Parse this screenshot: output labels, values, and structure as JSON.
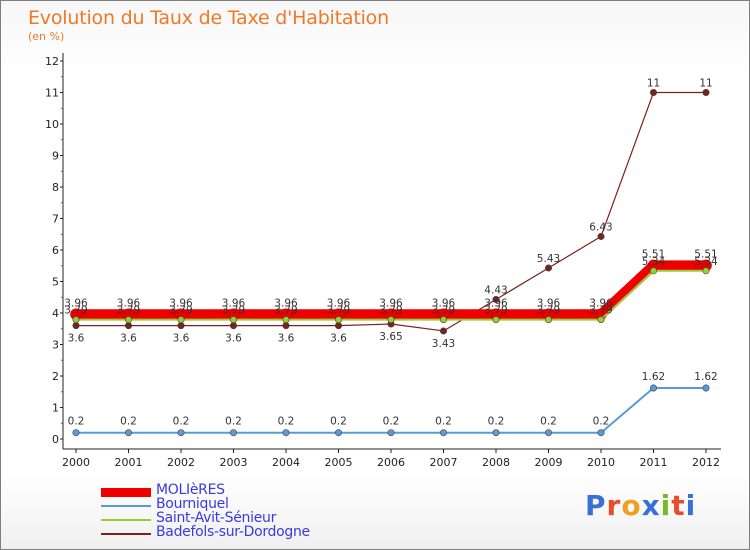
{
  "title": "Evolution du Taux de Taxe d'Habitation",
  "subtitle": "(en %)",
  "brand": {
    "letters": [
      "P",
      "r",
      "o",
      "x",
      "i",
      "t",
      "i"
    ],
    "colors": [
      "#3a6fd8",
      "#e84c2a",
      "#f0a020",
      "#3a6fd8",
      "#7ab82a",
      "#e84c2a",
      "#3a6fd8"
    ]
  },
  "chart_data": {
    "type": "line",
    "title": "Evolution du Taux de Taxe d'Habitation",
    "ylabel": "(en %)",
    "xlabel": "",
    "ylim": [
      0,
      12
    ],
    "yticks": [
      0,
      1,
      2,
      3,
      4,
      5,
      6,
      7,
      8,
      9,
      10,
      11,
      12
    ],
    "grid": false,
    "legend_position": "bottom-left",
    "x": [
      "2000",
      "2001",
      "2002",
      "2003",
      "2004",
      "2005",
      "2006",
      "2007",
      "2008",
      "2009",
      "2010",
      "2011",
      "2012"
    ],
    "series": [
      {
        "name": "MOLIèRES",
        "color": "#ee0000",
        "values": [
          3.96,
          3.96,
          3.96,
          3.96,
          3.96,
          3.96,
          3.96,
          3.96,
          3.96,
          3.96,
          3.96,
          5.51,
          5.51
        ],
        "labels": [
          "3.96",
          "3.96",
          "3.96",
          "3.96",
          "3.96",
          "3.96",
          "3.96",
          "3.96",
          "3.96",
          "3.96",
          "3.96",
          "5.51",
          "5.51"
        ]
      },
      {
        "name": "Bourniquel",
        "color": "#5b9bd5",
        "values": [
          0.2,
          0.2,
          0.2,
          0.2,
          0.2,
          0.2,
          0.2,
          0.2,
          0.2,
          0.2,
          0.2,
          1.62,
          1.62
        ],
        "labels": [
          "0.2",
          "0.2",
          "0.2",
          "0.2",
          "0.2",
          "0.2",
          "0.2",
          "0.2",
          "0.2",
          "0.2",
          "0.2",
          "1.62",
          "1.62"
        ]
      },
      {
        "name": "Saint-Avit-Sénieur",
        "color": "#9acd32",
        "values": [
          3.79,
          3.79,
          3.79,
          3.79,
          3.79,
          3.79,
          3.79,
          3.79,
          3.79,
          3.79,
          3.79,
          5.34,
          5.34
        ],
        "labels": [
          "3.79",
          "3.79",
          "3.79",
          "3.79",
          "3.79",
          "3.79",
          "3.79",
          "3.79",
          "3.79",
          "3.79",
          "3.79",
          "5.34",
          "5.34"
        ]
      },
      {
        "name": "Badefols-sur-Dordogne",
        "color": "#7a2020",
        "values": [
          3.6,
          3.6,
          3.6,
          3.6,
          3.6,
          3.6,
          3.65,
          3.43,
          4.43,
          5.43,
          6.43,
          11,
          11
        ],
        "labels": [
          "3.6",
          "3.6",
          "3.6",
          "3.6",
          "3.6",
          "3.6",
          "3.65",
          "3.43",
          "4.43",
          "5.43",
          "6.43",
          "11",
          "11"
        ]
      }
    ]
  }
}
